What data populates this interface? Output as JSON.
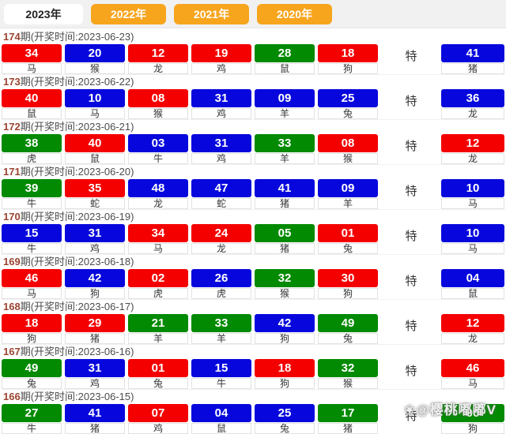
{
  "tabs": [
    {
      "label": "2023年",
      "active": true
    },
    {
      "label": "2022年",
      "active": false
    },
    {
      "label": "2021年",
      "active": false
    },
    {
      "label": "2020年",
      "active": false
    }
  ],
  "colors": {
    "red": "#f40000",
    "blue": "#0707dd",
    "green": "#028a02",
    "tab_orange": "#f7a51d",
    "period_number": "#9c4430",
    "title_text": "#4c4c4c"
  },
  "special_label": "特",
  "watermark": {
    "icon": "❀",
    "text": "@樱桃嘟嘟V"
  },
  "draws": [
    {
      "period": "174",
      "time": "期(开奖时间:2023-06-23)",
      "numbers": [
        {
          "num": "34",
          "animal": "马",
          "color": "red"
        },
        {
          "num": "20",
          "animal": "猴",
          "color": "blue"
        },
        {
          "num": "12",
          "animal": "龙",
          "color": "red"
        },
        {
          "num": "19",
          "animal": "鸡",
          "color": "red"
        },
        {
          "num": "28",
          "animal": "鼠",
          "color": "green"
        },
        {
          "num": "18",
          "animal": "狗",
          "color": "red"
        }
      ],
      "special": {
        "num": "41",
        "animal": "猪",
        "color": "blue"
      }
    },
    {
      "period": "173",
      "time": "期(开奖时间:2023-06-22)",
      "numbers": [
        {
          "num": "40",
          "animal": "鼠",
          "color": "red"
        },
        {
          "num": "10",
          "animal": "马",
          "color": "blue"
        },
        {
          "num": "08",
          "animal": "猴",
          "color": "red"
        },
        {
          "num": "31",
          "animal": "鸡",
          "color": "blue"
        },
        {
          "num": "09",
          "animal": "羊",
          "color": "blue"
        },
        {
          "num": "25",
          "animal": "兔",
          "color": "blue"
        }
      ],
      "special": {
        "num": "36",
        "animal": "龙",
        "color": "blue"
      }
    },
    {
      "period": "172",
      "time": "期(开奖时间:2023-06-21)",
      "numbers": [
        {
          "num": "38",
          "animal": "虎",
          "color": "green"
        },
        {
          "num": "40",
          "animal": "鼠",
          "color": "red"
        },
        {
          "num": "03",
          "animal": "牛",
          "color": "blue"
        },
        {
          "num": "31",
          "animal": "鸡",
          "color": "blue"
        },
        {
          "num": "33",
          "animal": "羊",
          "color": "green"
        },
        {
          "num": "08",
          "animal": "猴",
          "color": "red"
        }
      ],
      "special": {
        "num": "12",
        "animal": "龙",
        "color": "red"
      }
    },
    {
      "period": "171",
      "time": "期(开奖时间:2023-06-20)",
      "numbers": [
        {
          "num": "39",
          "animal": "牛",
          "color": "green"
        },
        {
          "num": "35",
          "animal": "蛇",
          "color": "red"
        },
        {
          "num": "48",
          "animal": "龙",
          "color": "blue"
        },
        {
          "num": "47",
          "animal": "蛇",
          "color": "blue"
        },
        {
          "num": "41",
          "animal": "猪",
          "color": "blue"
        },
        {
          "num": "09",
          "animal": "羊",
          "color": "blue"
        }
      ],
      "special": {
        "num": "10",
        "animal": "马",
        "color": "blue"
      }
    },
    {
      "period": "170",
      "time": "期(开奖时间:2023-06-19)",
      "numbers": [
        {
          "num": "15",
          "animal": "牛",
          "color": "blue"
        },
        {
          "num": "31",
          "animal": "鸡",
          "color": "blue"
        },
        {
          "num": "34",
          "animal": "马",
          "color": "red"
        },
        {
          "num": "24",
          "animal": "龙",
          "color": "red"
        },
        {
          "num": "05",
          "animal": "猪",
          "color": "green"
        },
        {
          "num": "01",
          "animal": "兔",
          "color": "red"
        }
      ],
      "special": {
        "num": "10",
        "animal": "马",
        "color": "blue"
      }
    },
    {
      "period": "169",
      "time": "期(开奖时间:2023-06-18)",
      "numbers": [
        {
          "num": "46",
          "animal": "马",
          "color": "red"
        },
        {
          "num": "42",
          "animal": "狗",
          "color": "blue"
        },
        {
          "num": "02",
          "animal": "虎",
          "color": "red"
        },
        {
          "num": "26",
          "animal": "虎",
          "color": "blue"
        },
        {
          "num": "32",
          "animal": "猴",
          "color": "green"
        },
        {
          "num": "30",
          "animal": "狗",
          "color": "red"
        }
      ],
      "special": {
        "num": "04",
        "animal": "鼠",
        "color": "blue"
      }
    },
    {
      "period": "168",
      "time": "期(开奖时间:2023-06-17)",
      "numbers": [
        {
          "num": "18",
          "animal": "狗",
          "color": "red"
        },
        {
          "num": "29",
          "animal": "猪",
          "color": "red"
        },
        {
          "num": "21",
          "animal": "羊",
          "color": "green"
        },
        {
          "num": "33",
          "animal": "羊",
          "color": "green"
        },
        {
          "num": "42",
          "animal": "狗",
          "color": "blue"
        },
        {
          "num": "49",
          "animal": "兔",
          "color": "green"
        }
      ],
      "special": {
        "num": "12",
        "animal": "龙",
        "color": "red"
      }
    },
    {
      "period": "167",
      "time": "期(开奖时间:2023-06-16)",
      "numbers": [
        {
          "num": "49",
          "animal": "兔",
          "color": "green"
        },
        {
          "num": "31",
          "animal": "鸡",
          "color": "blue"
        },
        {
          "num": "01",
          "animal": "兔",
          "color": "red"
        },
        {
          "num": "15",
          "animal": "牛",
          "color": "blue"
        },
        {
          "num": "18",
          "animal": "狗",
          "color": "red"
        },
        {
          "num": "32",
          "animal": "猴",
          "color": "green"
        }
      ],
      "special": {
        "num": "46",
        "animal": "马",
        "color": "red"
      }
    },
    {
      "period": "166",
      "time": "期(开奖时间:2023-06-15)",
      "numbers": [
        {
          "num": "27",
          "animal": "牛",
          "color": "green"
        },
        {
          "num": "41",
          "animal": "猪",
          "color": "blue"
        },
        {
          "num": "07",
          "animal": "鸡",
          "color": "red"
        },
        {
          "num": "04",
          "animal": "鼠",
          "color": "blue"
        },
        {
          "num": "25",
          "animal": "兔",
          "color": "blue"
        },
        {
          "num": "17",
          "animal": "猪",
          "color": "green"
        }
      ],
      "special": {
        "num": "06",
        "animal": "狗",
        "color": "green"
      }
    }
  ]
}
